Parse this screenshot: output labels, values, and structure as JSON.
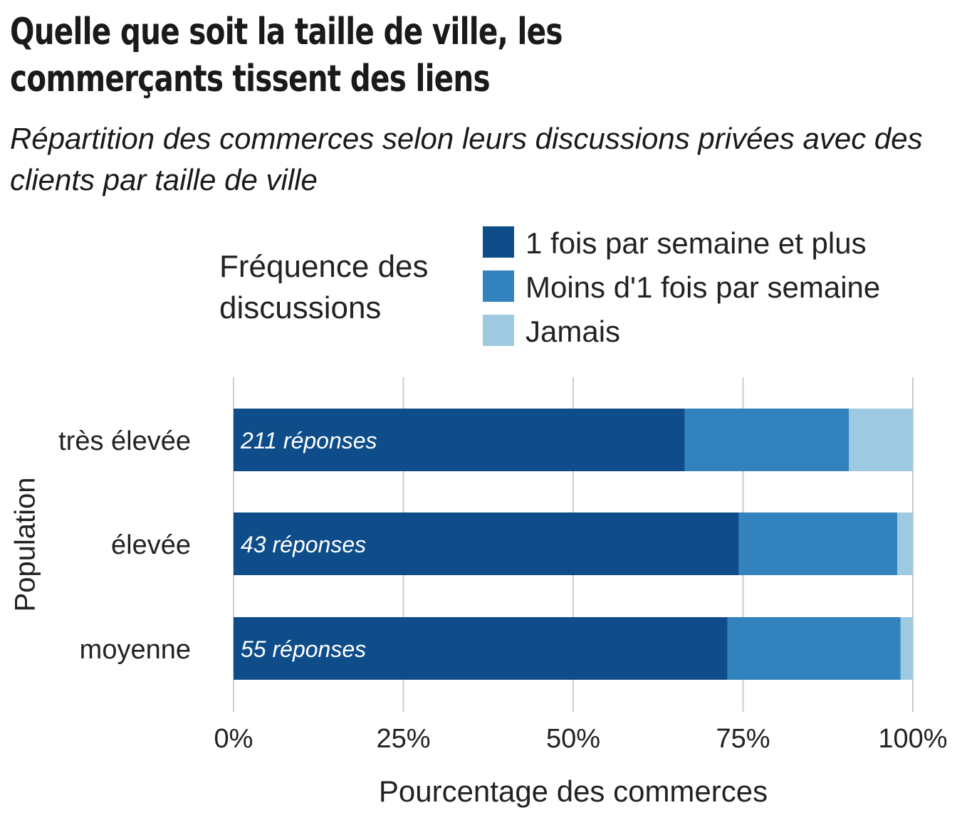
{
  "title": "Quelle que soit la taille de ville, les commerçants tissent des liens",
  "subtitle": "Répartition des commerces selon leurs discussions privées avec des clients par taille de ville",
  "chart_data": {
    "type": "bar",
    "orientation": "horizontal",
    "stacked": true,
    "normalized": true,
    "title": "Quelle que soit la taille de ville, les commerçants tissent des liens",
    "subtitle": "Répartition des commerces selon leurs discussions privées avec des clients par taille de ville",
    "xlabel": "Pourcentage des commerces",
    "ylabel": "Population",
    "xlim": [
      0,
      100
    ],
    "x_ticks": [
      "0%",
      "25%",
      "50%",
      "75%",
      "100%"
    ],
    "categories": [
      "très élevée",
      "élevée",
      "moyenne"
    ],
    "bar_annotations": [
      "211 réponses",
      "43 réponses",
      "55 réponses"
    ],
    "legend_title": "Fréquence des discussions",
    "legend_position": "top",
    "grid": "vertical-major",
    "series": [
      {
        "name": "1 fois par semaine et plus",
        "color": "#0e4d8a",
        "values": [
          66.4,
          74.4,
          72.7
        ]
      },
      {
        "name": "Moins d'1 fois par semaine",
        "color": "#3282be",
        "values": [
          24.2,
          23.3,
          25.5
        ]
      },
      {
        "name": "Jamais",
        "color": "#9ecae1",
        "values": [
          9.4,
          2.3,
          1.8
        ]
      }
    ]
  }
}
